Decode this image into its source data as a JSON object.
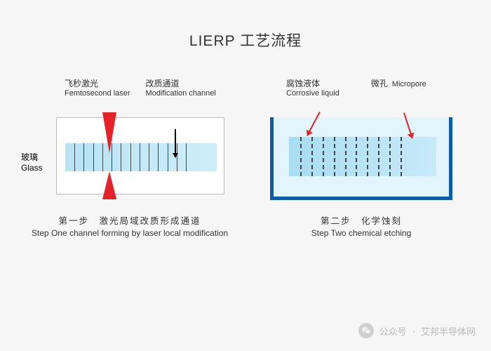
{
  "title": "LIERP 工艺流程",
  "colors": {
    "background": "#f6f6f6",
    "laser_red": "#e62128",
    "tank_blue": "#0a5ca8",
    "liquid": "#e2f4fc",
    "glass_grad_a": "#b7e3f5",
    "glass_grad_b": "#cdeef9",
    "text": "#333333",
    "footer_text": "#b8b8b8"
  },
  "step1": {
    "laser_label_cn": "飞秒激光",
    "laser_label_en": "Femtosecond laser",
    "mod_label_cn": "改质通道",
    "mod_label_en": "Modification channel",
    "glass_label_cn": "玻璃",
    "glass_label_en": "Glass",
    "caption_cn": "第一步　激光局域改质形成通道",
    "caption_en": "Step One  channel forming by laser local modification",
    "channel_count": 13
  },
  "step2": {
    "corr_label_cn": "腐蚀液体",
    "corr_label_en": "Corrosive liquid",
    "pore_label_cn": "微孔",
    "pore_label_en": "Micropore",
    "caption_cn": "第二步　化学蚀刻",
    "caption_en": "Step Two  chemical etching",
    "channel_count": 10
  },
  "footer": {
    "prefix": "公众号",
    "sep": "·",
    "name": "艾邦半导体网"
  }
}
